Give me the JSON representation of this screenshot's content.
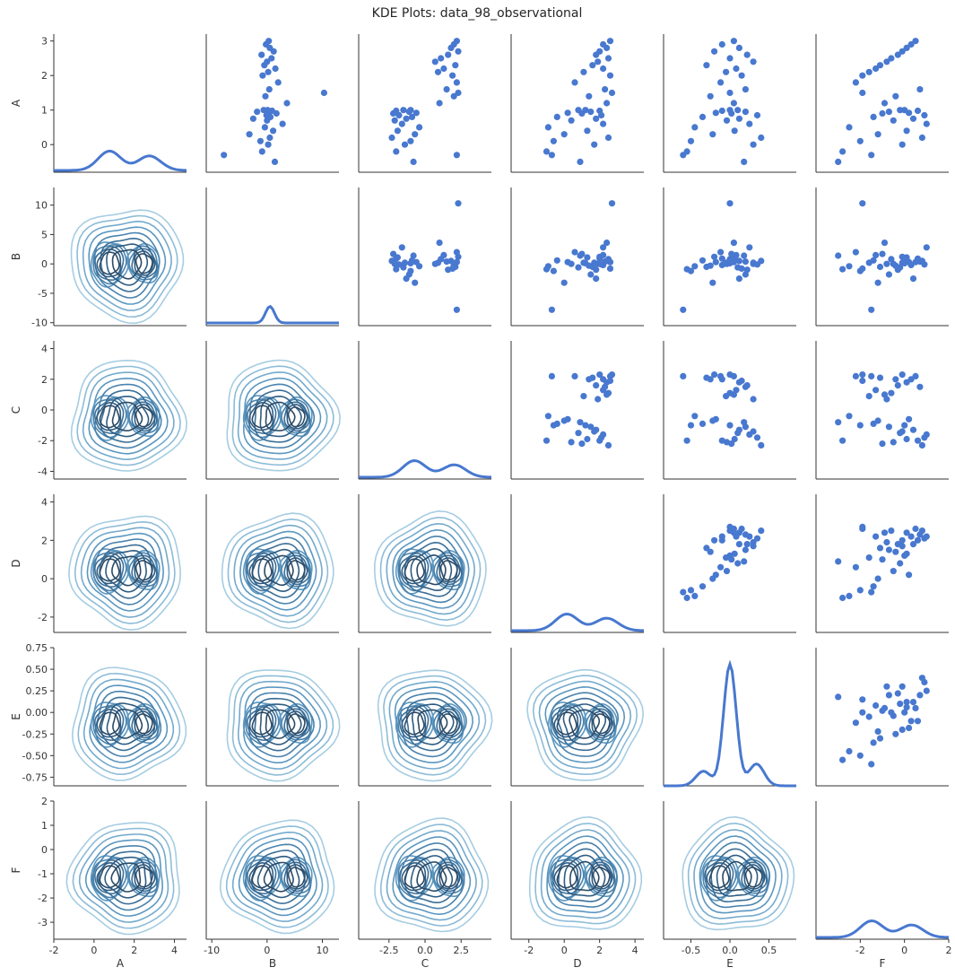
{
  "title": "KDE Plots: data_98_observational",
  "variables": [
    "A",
    "B",
    "C",
    "D",
    "E",
    "F"
  ],
  "colors": {
    "scatter": "#4878cf",
    "kde_line": "#4878cf",
    "contour_levels": [
      "#a6cde2",
      "#8dbcd8",
      "#74aacd",
      "#5b97c0",
      "#4a83ae",
      "#3b6f98",
      "#2f5c82",
      "#2b4a66"
    ],
    "axis": "#333333"
  },
  "chart_data": {
    "type": "pairplot",
    "upper": "scatter",
    "lower": "kde-contour",
    "diagonal": "kde",
    "grid": false,
    "axes": {
      "A": {
        "range": [
          -0.8,
          3.2
        ],
        "ticks": [
          "0",
          "1",
          "2",
          "3"
        ],
        "tick_values": [
          0,
          1,
          2,
          3
        ]
      },
      "B": {
        "range": [
          -10.5,
          13
        ],
        "ticks": [
          "-10",
          "-5",
          "0",
          "5",
          "10"
        ],
        "tick_values": [
          -10,
          -5,
          0,
          5,
          10
        ]
      },
      "C": {
        "range": [
          -4.5,
          4.5
        ],
        "ticks": [
          "-4",
          "-2",
          "0",
          "2",
          "4"
        ],
        "tick_values": [
          -4,
          -2,
          0,
          2,
          4
        ]
      },
      "D": {
        "range": [
          -2.8,
          4.4
        ],
        "ticks": [
          "-2",
          "0",
          "2",
          "4"
        ],
        "tick_values": [
          -2,
          0,
          2,
          4
        ]
      },
      "E": {
        "range": [
          -0.85,
          0.75
        ],
        "ticks": [
          "-0.75",
          "-0.50",
          "-0.25",
          "0.00",
          "0.25",
          "0.50",
          "0.75"
        ],
        "tick_values": [
          -0.75,
          -0.5,
          -0.25,
          0,
          0.25,
          0.5,
          0.75
        ]
      },
      "F": {
        "range": [
          -3.7,
          2
        ],
        "ticks": [
          "-3",
          "-2",
          "-1",
          "0",
          "1",
          "2"
        ],
        "tick_values": [
          -3,
          -2,
          -1,
          0,
          1,
          2
        ]
      }
    },
    "x_axes": {
      "A": {
        "range": [
          -2,
          4.6
        ],
        "ticks": [
          "-2",
          "0",
          "2",
          "4"
        ],
        "tick_values": [
          -2,
          0,
          2,
          4
        ]
      },
      "B": {
        "range": [
          -11,
          13
        ],
        "ticks": [
          "-10",
          "0",
          "10"
        ],
        "tick_values": [
          -10,
          0,
          10
        ]
      },
      "C": {
        "range": [
          -4.6,
          4.6
        ],
        "ticks": [
          "-2.5",
          "0.0",
          "2.5"
        ],
        "tick_values": [
          -2.5,
          0,
          2.5
        ]
      },
      "D": {
        "range": [
          -3,
          4.5
        ],
        "ticks": [
          "-2",
          "0",
          "2",
          "4"
        ],
        "tick_values": [
          -2,
          0,
          2,
          4
        ]
      },
      "E": {
        "range": [
          -0.85,
          0.85
        ],
        "ticks": [
          "-0.5",
          "0.0",
          "0.5"
        ],
        "tick_values": [
          -0.5,
          0,
          0.5
        ]
      },
      "F": {
        "range": [
          -4,
          2
        ],
        "ticks": [
          "-2",
          "0",
          "2"
        ],
        "tick_values": [
          -2,
          0,
          2
        ]
      }
    },
    "scatter_points": [
      {
        "A": 3.0,
        "B": 0.3,
        "C": 2.2,
        "D": 2.6,
        "E": 0.05,
        "F": 0.5
      },
      {
        "A": 2.9,
        "B": -0.2,
        "C": 2.0,
        "D": 2.2,
        "E": -0.1,
        "F": 0.3
      },
      {
        "A": 2.8,
        "B": 0.5,
        "C": 1.8,
        "D": 2.4,
        "E": 0.12,
        "F": 0.1
      },
      {
        "A": 2.7,
        "B": 1.2,
        "C": 2.3,
        "D": 2.0,
        "E": -0.2,
        "F": -0.1
      },
      {
        "A": 2.6,
        "B": -1.0,
        "C": 1.6,
        "D": 1.8,
        "E": 0.22,
        "F": -0.3
      },
      {
        "A": 2.5,
        "B": 0.8,
        "C": 1.1,
        "D": 2.5,
        "E": 0.0,
        "F": -0.6
      },
      {
        "A": 2.4,
        "B": 0.0,
        "C": 0.7,
        "D": 1.9,
        "E": 0.3,
        "F": -0.8
      },
      {
        "A": 2.3,
        "B": -0.5,
        "C": 2.1,
        "D": 1.6,
        "E": -0.3,
        "F": -1.1
      },
      {
        "A": 2.2,
        "B": 1.5,
        "C": 1.3,
        "D": 2.2,
        "E": 0.08,
        "F": -1.3
      },
      {
        "A": 2.1,
        "B": 0.2,
        "C": 0.9,
        "D": 1.1,
        "E": -0.05,
        "F": -1.6
      },
      {
        "A": 2.0,
        "B": -0.8,
        "C": 1.9,
        "D": 2.6,
        "E": 0.15,
        "F": -1.9
      },
      {
        "A": 1.8,
        "B": 2.0,
        "C": 2.2,
        "D": 0.6,
        "E": -0.12,
        "F": -2.2
      },
      {
        "A": 1.6,
        "B": 0.4,
        "C": 1.5,
        "D": 2.3,
        "E": 0.2,
        "F": 0.7
      },
      {
        "A": 1.4,
        "B": -0.3,
        "C": 2.0,
        "D": 1.4,
        "E": -0.25,
        "F": -0.4
      },
      {
        "A": 1.2,
        "B": 3.6,
        "C": 1.0,
        "D": 2.4,
        "E": 0.05,
        "F": -0.9
      },
      {
        "A": 1.0,
        "B": 0.1,
        "C": -1.0,
        "D": 1.2,
        "E": 0.0,
        "F": 0.0
      },
      {
        "A": 1.0,
        "B": -0.6,
        "C": -1.5,
        "D": 0.8,
        "E": 0.1,
        "F": -0.2
      },
      {
        "A": 0.98,
        "B": 0.9,
        "C": -2.0,
        "D": 2.0,
        "E": -0.1,
        "F": 0.6
      },
      {
        "A": 0.95,
        "B": -1.8,
        "C": -1.1,
        "D": 1.5,
        "E": 0.2,
        "F": -0.7
      },
      {
        "A": 0.92,
        "B": 0.3,
        "C": -0.6,
        "D": 0.2,
        "E": -0.18,
        "F": 0.2
      },
      {
        "A": 0.9,
        "B": 1.7,
        "C": -2.2,
        "D": 1.0,
        "E": 0.02,
        "F": -1.0
      },
      {
        "A": 0.85,
        "B": -0.1,
        "C": -1.8,
        "D": 2.1,
        "E": 0.35,
        "F": 0.9
      },
      {
        "A": 0.8,
        "B": 0.6,
        "C": -0.9,
        "D": -0.4,
        "E": -0.35,
        "F": -1.4
      },
      {
        "A": 0.75,
        "B": -2.5,
        "C": -1.3,
        "D": 1.8,
        "E": 0.12,
        "F": 0.4
      },
      {
        "A": 0.7,
        "B": 0.0,
        "C": -2.1,
        "D": 0.4,
        "E": -0.04,
        "F": -0.5
      },
      {
        "A": 0.6,
        "B": 2.8,
        "C": -1.6,
        "D": 2.2,
        "E": 0.25,
        "F": 1.0
      },
      {
        "A": 0.5,
        "B": -0.4,
        "C": -0.4,
        "D": -0.9,
        "E": -0.45,
        "F": -2.5
      },
      {
        "A": 0.4,
        "B": 1.1,
        "C": -1.9,
        "D": 1.3,
        "E": 0.06,
        "F": 0.1
      },
      {
        "A": 0.3,
        "B": -3.2,
        "C": -0.7,
        "D": 0.0,
        "E": -0.22,
        "F": -1.2
      },
      {
        "A": 0.2,
        "B": 0.5,
        "C": -2.3,
        "D": 2.5,
        "E": 0.4,
        "F": 0.8
      },
      {
        "A": 0.1,
        "B": -1.2,
        "C": -1.0,
        "D": -0.6,
        "E": -0.5,
        "F": -2.0
      },
      {
        "A": 0.0,
        "B": 0.2,
        "C": -1.4,
        "D": 1.7,
        "E": 0.3,
        "F": -0.1
      },
      {
        "A": -0.2,
        "B": -0.9,
        "C": -2.0,
        "D": -1.0,
        "E": -0.55,
        "F": -2.8
      },
      {
        "A": -0.5,
        "B": 1.4,
        "C": -0.8,
        "D": 0.9,
        "E": 0.18,
        "F": -3.0
      },
      {
        "A": -0.3,
        "B": -7.8,
        "C": 2.2,
        "D": -0.7,
        "E": -0.6,
        "F": -1.5
      },
      {
        "A": 1.5,
        "B": 10.3,
        "C": 2.3,
        "D": 2.7,
        "E": 0.0,
        "F": -1.9
      }
    ],
    "contour_levels": 8
  }
}
